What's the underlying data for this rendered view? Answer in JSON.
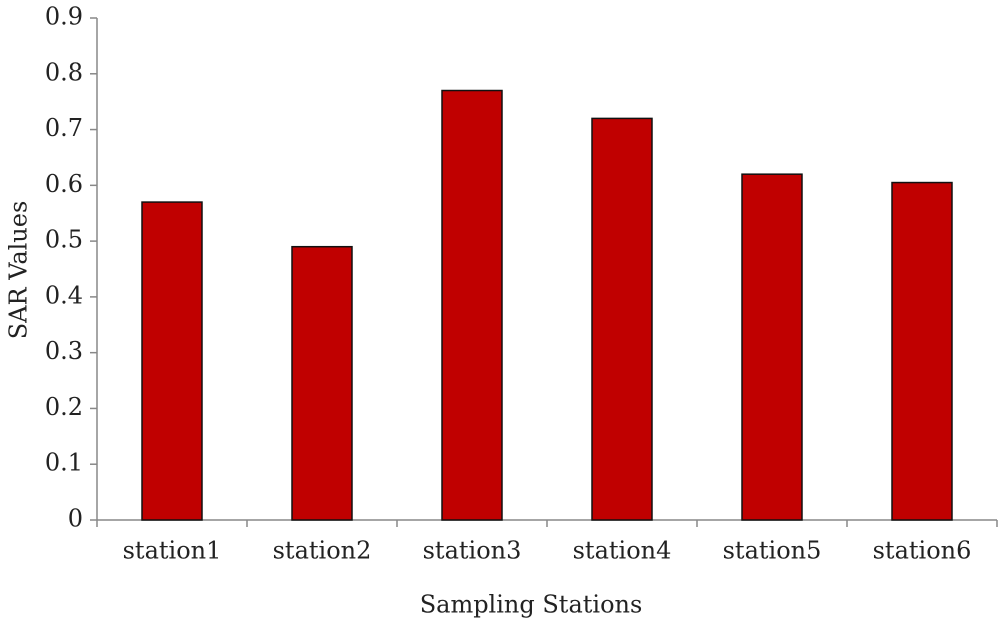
{
  "chart_data": {
    "type": "bar",
    "x_label": "Sampling Stations",
    "y_label": "SAR Values",
    "categories": [
      "station1",
      "station2",
      "station3",
      "station4",
      "station5",
      "station6"
    ],
    "values": [
      0.57,
      0.49,
      0.77,
      0.72,
      0.62,
      0.605
    ],
    "color": "#c00000",
    "ylim": [
      0,
      0.9
    ],
    "yticks": [
      0,
      0.1,
      0.2,
      0.3,
      0.4,
      0.5,
      0.6,
      0.7,
      0.8,
      0.9
    ],
    "grid": false
  }
}
